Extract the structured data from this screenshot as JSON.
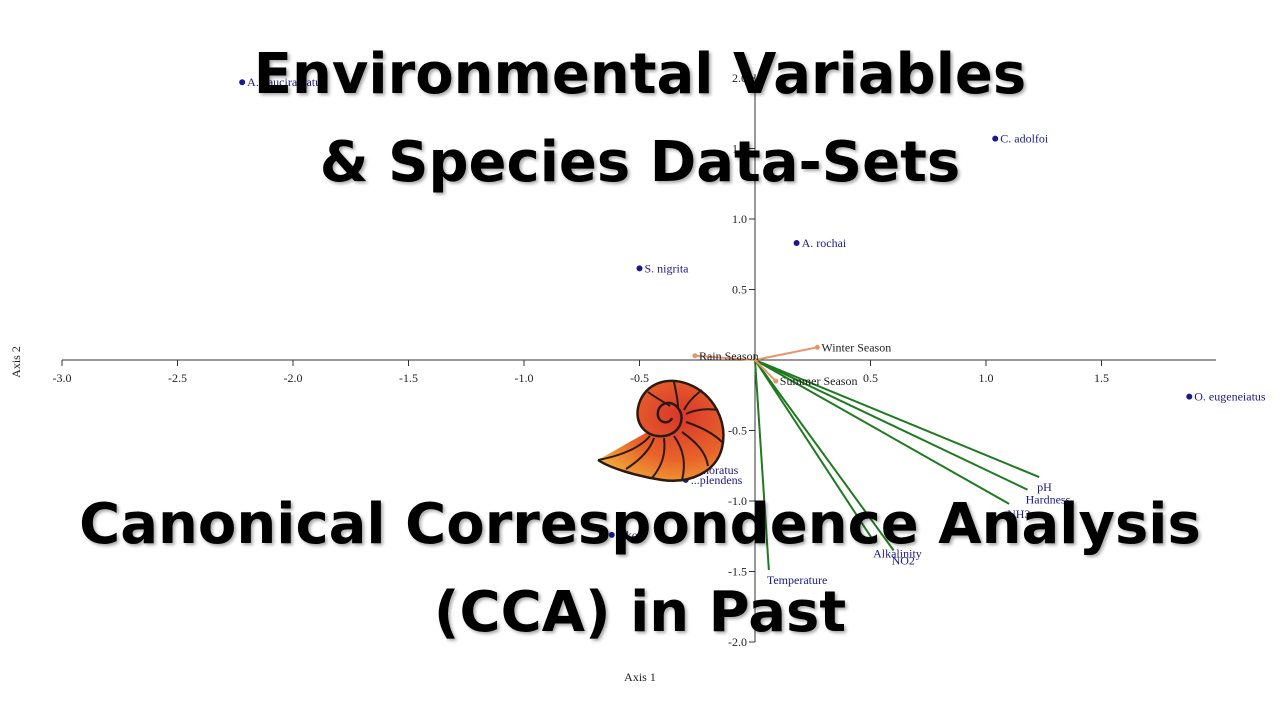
{
  "overlay": {
    "title_line1": "Environmental Variables",
    "title_line2": "& Species Data-Sets",
    "subtitle_line1": "Canonical Correspondence Analysis",
    "subtitle_line2": "(CCA) in Past"
  },
  "logo": {
    "icon": "nautilus-shell-icon"
  },
  "chart_data": {
    "type": "scatter",
    "xlabel": "Axis 1",
    "ylabel": "Axis 2",
    "xlim": [
      -3.0,
      2.0
    ],
    "ylim": [
      -2.0,
      2.0
    ],
    "x_ticks": [
      -3.0,
      -2.5,
      -2.0,
      -1.5,
      -1.0,
      -0.5,
      0.5,
      1.0,
      1.5
    ],
    "x_tick_labels": [
      "-3.0",
      "-2.5",
      "-2.0",
      "-1.5",
      "-1.0",
      "-0.5",
      "0.5",
      "1.0",
      "1.5"
    ],
    "y_ticks": [
      2.0,
      1.5,
      1.0,
      0.5,
      -0.5,
      -1.0,
      -1.5,
      -2.0
    ],
    "y_tick_labels": [
      "2.0",
      "1.5",
      "1.0",
      "0.5",
      "-0.5",
      "-1.0",
      "-1.5",
      "-2.0"
    ],
    "species": [
      {
        "name": "A. pauciradiatus",
        "x": -2.22,
        "y": 1.97
      },
      {
        "name": "C. adolfoi",
        "x": 1.04,
        "y": 1.57
      },
      {
        "name": "A. rochai",
        "x": 0.18,
        "y": 0.83
      },
      {
        "name": "S. nigrita",
        "x": -0.5,
        "y": 0.65
      },
      {
        "name": "O. eugeneiatus",
        "x": 1.88,
        "y": -0.26
      },
      {
        "name": "...moratus",
        "x": -0.3,
        "y": -0.78
      },
      {
        "name": "...plendens",
        "x": -0.3,
        "y": -0.85
      },
      {
        "name": "...ko",
        "x": -0.62,
        "y": -1.24
      }
    ],
    "environmental_vectors": [
      {
        "name": "pH",
        "x": 1.23,
        "y": -0.83
      },
      {
        "name": "Hardness",
        "x": 1.18,
        "y": -0.92
      },
      {
        "name": "NH3",
        "x": 1.1,
        "y": -1.02
      },
      {
        "name": "NO2",
        "x": 0.6,
        "y": -1.35
      },
      {
        "name": "Alkalinity",
        "x": 0.52,
        "y": -1.3
      },
      {
        "name": "Temperature",
        "x": 0.06,
        "y": -1.49
      }
    ],
    "seasons": [
      {
        "name": "Winter Season",
        "x": 0.27,
        "y": 0.09
      },
      {
        "name": "Rain Season",
        "x": -0.26,
        "y": 0.03
      },
      {
        "name": "Summer Season",
        "x": 0.09,
        "y": -0.15
      }
    ],
    "colors": {
      "species_point": "#1a1a8c",
      "env_vector": "#1f7a1f",
      "season_vector": "#e8956a",
      "axis": "#333333"
    }
  }
}
